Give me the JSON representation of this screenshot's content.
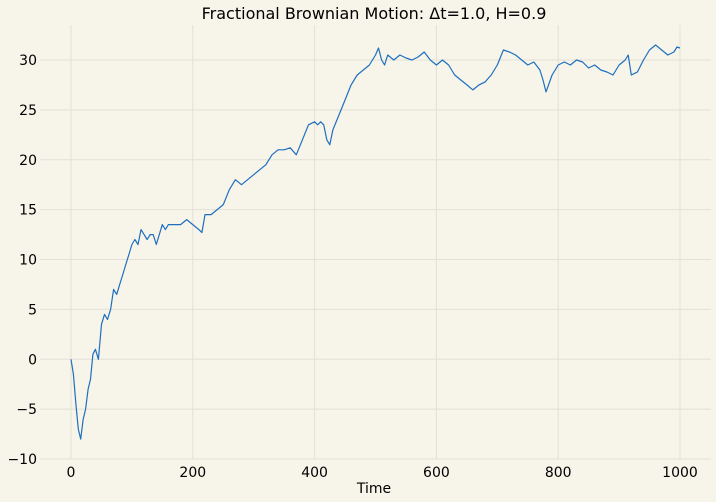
{
  "chart_data": {
    "type": "line",
    "title": "Fractional Brownian Motion: Δt=1.0, H=0.9",
    "xlabel": "Time",
    "ylabel": "",
    "xlim": [
      0,
      1000
    ],
    "ylim": [
      -10,
      33
    ],
    "xticks": [
      0,
      200,
      400,
      600,
      800,
      1000
    ],
    "xtick_labels": [
      "0",
      "200",
      "400",
      "600",
      "800",
      "1000"
    ],
    "yticks": [
      -10,
      -5,
      0,
      5,
      10,
      15,
      20,
      25,
      30
    ],
    "ytick_labels": [
      "−10",
      "−5",
      "0",
      "5",
      "10",
      "15",
      "20",
      "25",
      "30"
    ],
    "grid": true,
    "legend": "none",
    "colors": {
      "background": "#f7f4e9",
      "line": "#1f6fc0",
      "grid": "#e3e1d7"
    },
    "series": [
      {
        "x": [
          0,
          4,
          8,
          12,
          16,
          20,
          24,
          28,
          32,
          36,
          40,
          45,
          50,
          55,
          60,
          65,
          70,
          75,
          80,
          85,
          90,
          95,
          100,
          105,
          110,
          115,
          120,
          125,
          130,
          135,
          140,
          145,
          150,
          155,
          160,
          170,
          180,
          190,
          200,
          210,
          215,
          220,
          230,
          240,
          250,
          260,
          270,
          280,
          290,
          300,
          310,
          320,
          330,
          340,
          350,
          360,
          370,
          380,
          390,
          400,
          405,
          410,
          415,
          420,
          425,
          430,
          440,
          450,
          460,
          470,
          480,
          490,
          500,
          505,
          510,
          515,
          520,
          530,
          540,
          550,
          560,
          570,
          580,
          590,
          600,
          610,
          620,
          630,
          640,
          650,
          660,
          670,
          680,
          690,
          700,
          710,
          720,
          730,
          740,
          750,
          760,
          770,
          775,
          780,
          790,
          800,
          810,
          820,
          830,
          840,
          850,
          860,
          870,
          880,
          890,
          900,
          910,
          915,
          920,
          930,
          940,
          950,
          960,
          970,
          980,
          990,
          995,
          1000
        ],
        "y": [
          0,
          -1.5,
          -4.5,
          -7.0,
          -8.0,
          -6.0,
          -5.0,
          -3.0,
          -2.0,
          0.5,
          1.0,
          0,
          3.5,
          4.5,
          4.0,
          5.0,
          7.0,
          6.5,
          7.5,
          8.5,
          9.5,
          10.5,
          11.5,
          12.0,
          11.5,
          13.0,
          12.5,
          12.0,
          12.5,
          12.5,
          11.5,
          12.5,
          13.5,
          13.0,
          13.5,
          13.5,
          13.5,
          14.0,
          13.5,
          13.0,
          12.7,
          14.5,
          14.5,
          15.0,
          15.5,
          17.0,
          18.0,
          17.5,
          18.0,
          18.5,
          19.0,
          19.5,
          20.5,
          21.0,
          21.0,
          21.2,
          20.5,
          22.0,
          23.5,
          23.8,
          23.5,
          23.8,
          23.5,
          22.0,
          21.5,
          23.0,
          24.5,
          26.0,
          27.5,
          28.5,
          29.0,
          29.5,
          30.5,
          31.2,
          30.0,
          29.5,
          30.5,
          30.0,
          30.5,
          30.2,
          30.0,
          30.3,
          30.8,
          30.0,
          29.5,
          30.0,
          29.5,
          28.5,
          28.0,
          27.5,
          27.0,
          27.5,
          27.8,
          28.5,
          29.5,
          31.0,
          30.8,
          30.5,
          30.0,
          29.5,
          29.8,
          29.0,
          28.0,
          26.8,
          28.5,
          29.5,
          29.8,
          29.5,
          30.0,
          29.8,
          29.2,
          29.5,
          29.0,
          28.8,
          28.5,
          29.5,
          30.0,
          30.5,
          28.5,
          28.8,
          30.0,
          31.0,
          31.5,
          31.0,
          30.5,
          30.8,
          31.3,
          31.2
        ]
      }
    ]
  }
}
